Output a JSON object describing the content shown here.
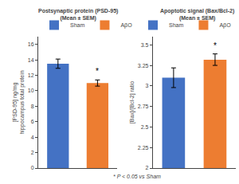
{
  "footnote": "* P < 0.05 vs Sham",
  "chart_data": [
    {
      "type": "bar",
      "title": "Postsynaptic protein (PSD-95)\n(Mean ± SEM)",
      "ylabel": "[PSD-95] ng/mg\nhippocampus total protein",
      "categories": [
        "Sham",
        "AβO"
      ],
      "values": [
        13.5,
        11.0
      ],
      "errors": [
        0.6,
        0.4
      ],
      "colors": [
        "#4472C4",
        "#ED7D31"
      ],
      "ylim": [
        0,
        17
      ],
      "yticks": [
        0,
        2,
        4,
        6,
        8,
        10,
        12,
        14,
        16
      ],
      "grid": false,
      "legend": "top",
      "tick_labels": "y",
      "annotations": [
        {
          "text": "*",
          "category": "AβO",
          "y": 11.7
        }
      ]
    },
    {
      "type": "bar",
      "title": "Apoptotic signal (Bax/Bcl-2)\n(Mean ± SEM)",
      "ylabel": "[Bax]/[Bcl-2] ratio",
      "categories": [
        "Sham",
        "AβO"
      ],
      "values": [
        3.1,
        3.32
      ],
      "errors": [
        0.12,
        0.07
      ],
      "colors": [
        "#4472C4",
        "#ED7D31"
      ],
      "ylim": [
        2,
        3.6
      ],
      "yticks": [
        2,
        2.25,
        2.5,
        2.75,
        3,
        3.25,
        3.5
      ],
      "grid": false,
      "legend": "top",
      "tick_labels": "y",
      "annotations": [
        {
          "text": "*",
          "category": "AβO",
          "y": 3.42
        }
      ]
    }
  ]
}
